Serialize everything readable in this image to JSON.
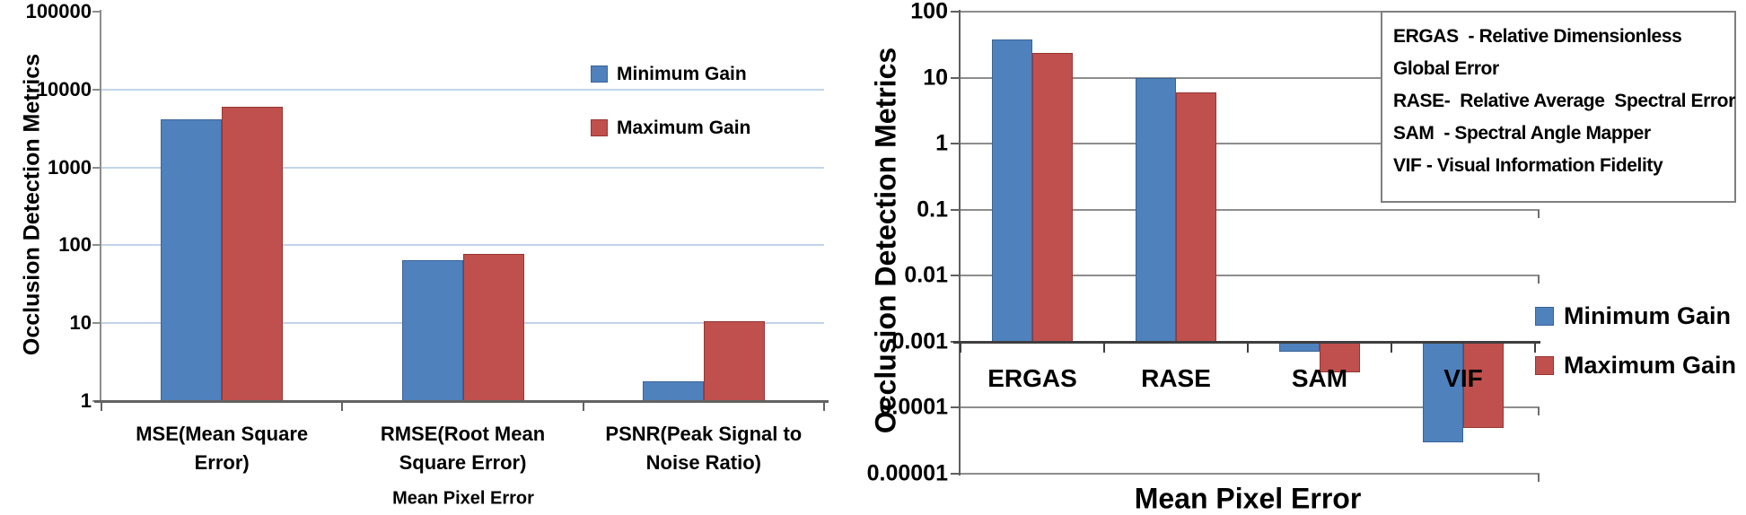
{
  "figure": {
    "description": "Two log-scale grouped bar charts comparing occlusion detection metrics at minimum and maximum gain",
    "series_colors": {
      "minimum_gain": "#4F81BD",
      "maximum_gain": "#C0504D"
    }
  },
  "chart_data": [
    {
      "type": "bar",
      "title": "",
      "ylabel": "Occlusion Detection Metrics",
      "xlabel": "Mean Pixel Error",
      "y_scale": "log",
      "ylim": [
        1,
        100000
      ],
      "baseline": 1,
      "grid": true,
      "legend_position": "inside-top-right",
      "y_tick_labels": [
        "100000",
        "10000",
        "1000",
        "100",
        "10",
        "1"
      ],
      "categories": [
        "MSE(Mean Square Error)",
        "RMSE(Root Mean Square Error)",
        "PSNR(Peak Signal to Noise Ratio)"
      ],
      "category_label_lines": [
        [
          "MSE(Mean Square",
          "Error)"
        ],
        [
          "RMSE(Root Mean",
          "Square Error)"
        ],
        [
          "PSNR(Peak Signal to",
          "Noise Ratio)"
        ]
      ],
      "series": [
        {
          "name": "Minimum Gain",
          "color": "#4F81BD",
          "values": [
            4200,
            64,
            1.8
          ]
        },
        {
          "name": "Maximum Gain",
          "color": "#C0504D",
          "values": [
            6000,
            78,
            10.5
          ]
        }
      ]
    },
    {
      "type": "bar",
      "title": "",
      "ylabel": "Occlusion Detection Metrics",
      "xlabel": "Mean Pixel Error",
      "y_scale": "log",
      "ylim": [
        1e-05,
        100
      ],
      "baseline": 0.001,
      "grid": true,
      "legend_position": "outside-right",
      "y_tick_labels": [
        "100",
        "10",
        "1",
        "0.1",
        "0.01",
        "0.001",
        "0.0001",
        "0.00001"
      ],
      "categories": [
        "ERGAS",
        "RASE",
        "SAM",
        "VIF"
      ],
      "series": [
        {
          "name": "Minimum Gain",
          "color": "#4F81BD",
          "values": [
            38,
            10,
            0.0007,
            3e-05
          ]
        },
        {
          "name": "Maximum Gain",
          "color": "#C0504D",
          "values": [
            24,
            6,
            0.00035,
            5e-05
          ]
        }
      ],
      "annotation_lines": [
        "ERGAS  - Relative Dimensionless",
        "Global Error",
        "RASE-  Relative Average  Spectral Error",
        "SAM  - Spectral Angle Mapper",
        "VIF - Visual Information Fidelity"
      ]
    }
  ]
}
